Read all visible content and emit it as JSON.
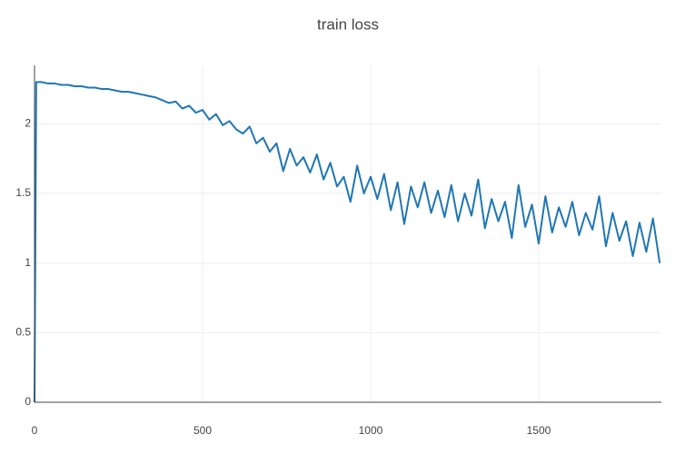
{
  "chart_data": {
    "type": "line",
    "title": "train loss",
    "x": [
      0,
      5,
      20,
      40,
      60,
      80,
      100,
      120,
      140,
      160,
      180,
      200,
      220,
      240,
      260,
      280,
      300,
      320,
      340,
      360,
      380,
      400,
      420,
      440,
      460,
      480,
      500,
      520,
      540,
      560,
      580,
      600,
      620,
      640,
      660,
      680,
      700,
      720,
      740,
      760,
      780,
      800,
      820,
      840,
      860,
      880,
      900,
      920,
      940,
      960,
      980,
      1000,
      1020,
      1040,
      1060,
      1080,
      1100,
      1120,
      1140,
      1160,
      1180,
      1200,
      1220,
      1240,
      1260,
      1280,
      1300,
      1320,
      1340,
      1360,
      1380,
      1400,
      1420,
      1440,
      1460,
      1480,
      1500,
      1520,
      1540,
      1560,
      1580,
      1600,
      1620,
      1640,
      1660,
      1680,
      1700,
      1720,
      1740,
      1760,
      1780,
      1800,
      1820,
      1840,
      1860
    ],
    "values": [
      0,
      2.3,
      2.3,
      2.29,
      2.29,
      2.28,
      2.28,
      2.27,
      2.27,
      2.26,
      2.26,
      2.25,
      2.25,
      2.24,
      2.23,
      2.23,
      2.22,
      2.21,
      2.2,
      2.19,
      2.17,
      2.15,
      2.16,
      2.11,
      2.13,
      2.08,
      2.1,
      2.03,
      2.07,
      1.99,
      2.02,
      1.96,
      1.93,
      1.98,
      1.86,
      1.9,
      1.8,
      1.86,
      1.66,
      1.82,
      1.7,
      1.76,
      1.65,
      1.78,
      1.6,
      1.72,
      1.55,
      1.62,
      1.44,
      1.7,
      1.5,
      1.62,
      1.46,
      1.64,
      1.38,
      1.58,
      1.28,
      1.55,
      1.4,
      1.58,
      1.36,
      1.52,
      1.33,
      1.56,
      1.3,
      1.5,
      1.34,
      1.6,
      1.25,
      1.46,
      1.3,
      1.44,
      1.18,
      1.56,
      1.26,
      1.42,
      1.14,
      1.48,
      1.22,
      1.4,
      1.26,
      1.44,
      1.2,
      1.36,
      1.24,
      1.48,
      1.12,
      1.36,
      1.16,
      1.3,
      1.05,
      1.29,
      1.08,
      1.32,
      1
    ],
    "color": "#1f77b4",
    "xlim": [
      0,
      1865
    ],
    "ylim": [
      0,
      2.42
    ],
    "xticks": [
      0,
      500,
      1000,
      1500
    ],
    "yticks": [
      0,
      0.5,
      1,
      1.5,
      2
    ],
    "grid": true
  }
}
